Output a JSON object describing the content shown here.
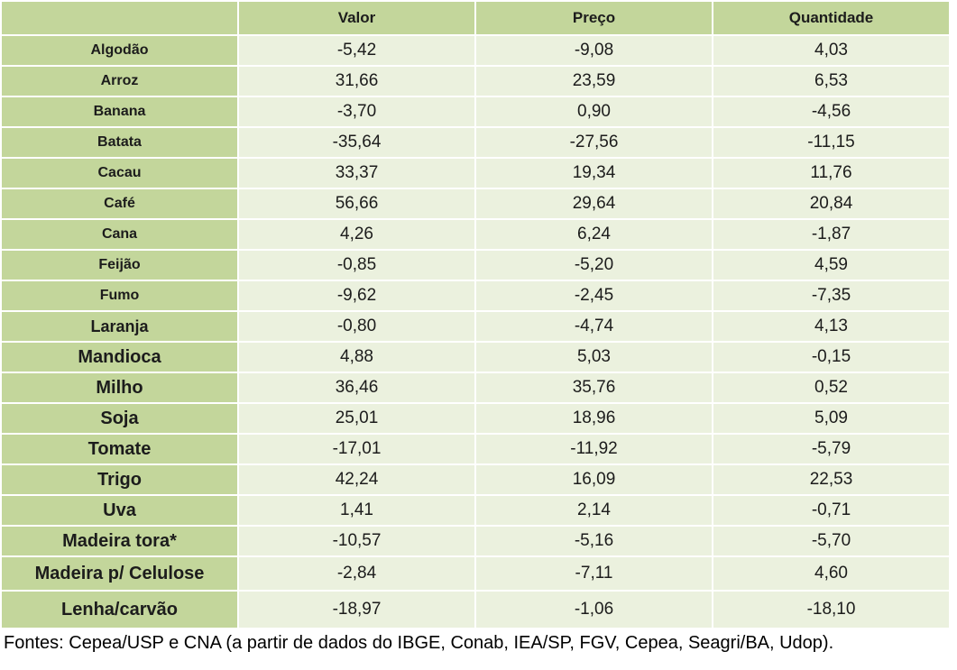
{
  "table": {
    "columns": [
      "",
      "Valor",
      "Preço",
      "Quantidade"
    ],
    "rows": [
      {
        "label": "Algodão",
        "valor": "-5,42",
        "preco": "-9,08",
        "quantidade": "4,03"
      },
      {
        "label": "Arroz",
        "valor": "31,66",
        "preco": "23,59",
        "quantidade": "6,53"
      },
      {
        "label": "Banana",
        "valor": "-3,70",
        "preco": "0,90",
        "quantidade": "-4,56"
      },
      {
        "label": "Batata",
        "valor": "-35,64",
        "preco": "-27,56",
        "quantidade": "-11,15"
      },
      {
        "label": "Cacau",
        "valor": "33,37",
        "preco": "19,34",
        "quantidade": "11,76"
      },
      {
        "label": "Café",
        "valor": "56,66",
        "preco": "29,64",
        "quantidade": "20,84"
      },
      {
        "label": "Cana",
        "valor": "4,26",
        "preco": "6,24",
        "quantidade": "-1,87"
      },
      {
        "label": "Feijão",
        "valor": "-0,85",
        "preco": "-5,20",
        "quantidade": "4,59"
      },
      {
        "label": "Fumo",
        "valor": "-9,62",
        "preco": "-2,45",
        "quantidade": "-7,35"
      },
      {
        "label": "Laranja",
        "valor": "-0,80",
        "preco": "-4,74",
        "quantidade": "4,13"
      },
      {
        "label": "Mandioca",
        "valor": "4,88",
        "preco": "5,03",
        "quantidade": "-0,15"
      },
      {
        "label": "Milho",
        "valor": "36,46",
        "preco": "35,76",
        "quantidade": "0,52"
      },
      {
        "label": "Soja",
        "valor": "25,01",
        "preco": "18,96",
        "quantidade": "5,09"
      },
      {
        "label": "Tomate",
        "valor": "-17,01",
        "preco": "-11,92",
        "quantidade": "-5,79"
      },
      {
        "label": "Trigo",
        "valor": "42,24",
        "preco": "16,09",
        "quantidade": "22,53"
      },
      {
        "label": "Uva",
        "valor": "1,41",
        "preco": "2,14",
        "quantidade": "-0,71"
      },
      {
        "label": "Madeira tora*",
        "valor": "-10,57",
        "preco": "-5,16",
        "quantidade": "-5,70"
      },
      {
        "label": "Madeira p/ Celulose",
        "valor": "-2,84",
        "preco": "-7,11",
        "quantidade": "4,60"
      },
      {
        "label": "Lenha/carvão",
        "valor": "-18,97",
        "preco": "-1,06",
        "quantidade": "-18,10"
      }
    ]
  },
  "footer": {
    "text": "Fontes: Cepea/USP e CNA (a partir de dados do IBGE, Conab, IEA/SP, FGV, Cepea, Seagri/BA, Udop)."
  },
  "colors": {
    "cell_green": "#c3d69b",
    "cell_light": "#ebf1de",
    "gridline": "#ffffff",
    "text": "#1c1c1c"
  },
  "chart_data": {
    "type": "table",
    "title": "",
    "categories": [
      "Algodão",
      "Arroz",
      "Banana",
      "Batata",
      "Cacau",
      "Café",
      "Cana",
      "Feijão",
      "Fumo",
      "Laranja",
      "Mandioca",
      "Milho",
      "Soja",
      "Tomate",
      "Trigo",
      "Uva",
      "Madeira tora*",
      "Madeira p/ Celulose",
      "Lenha/carvão"
    ],
    "series": [
      {
        "name": "Valor",
        "values": [
          -5.42,
          31.66,
          -3.7,
          -35.64,
          33.37,
          56.66,
          4.26,
          -0.85,
          -9.62,
          -0.8,
          4.88,
          36.46,
          25.01,
          -17.01,
          42.24,
          1.41,
          -10.57,
          -2.84,
          -18.97
        ]
      },
      {
        "name": "Preço",
        "values": [
          -9.08,
          23.59,
          0.9,
          -27.56,
          19.34,
          29.64,
          6.24,
          -5.2,
          -2.45,
          -4.74,
          5.03,
          35.76,
          18.96,
          -11.92,
          16.09,
          2.14,
          -5.16,
          -7.11,
          -1.06
        ]
      },
      {
        "name": "Quantidade",
        "values": [
          4.03,
          6.53,
          -4.56,
          -11.15,
          11.76,
          20.84,
          -1.87,
          4.59,
          -7.35,
          4.13,
          -0.15,
          0.52,
          5.09,
          -5.79,
          22.53,
          -0.71,
          -5.7,
          4.6,
          -18.1
        ]
      }
    ],
    "annotations": [
      "Fontes: Cepea/USP e CNA (a partir de dados do IBGE, Conab, IEA/SP, FGV, Cepea, Seagri/BA, Udop)."
    ]
  }
}
